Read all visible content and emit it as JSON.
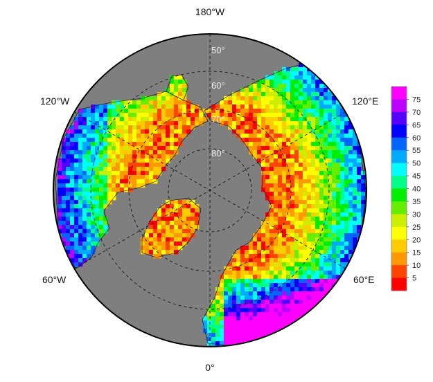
{
  "map": {
    "projection": "north-polar-stereographic",
    "ocean_color": "#7f7f7f",
    "land_outline_color": "#000000",
    "graticule_color": "#111111",
    "longitude_labels": {
      "top": "180°W",
      "upper_left": "120°W",
      "upper_right": "120°E",
      "lower_left": "60°W",
      "lower_right": "60°E",
      "bottom": "0°"
    },
    "latitude_labels": [
      "50°",
      "60°",
      "70°",
      "80°"
    ],
    "latitude_circles": [
      50,
      60,
      70,
      80
    ],
    "field_range": [
      0,
      75
    ]
  },
  "colorbar": {
    "ticks": [
      "75",
      "70",
      "65",
      "60",
      "55",
      "50",
      "45",
      "40",
      "35",
      "30",
      "25",
      "20",
      "15",
      "10",
      "5"
    ],
    "colors": [
      "#ff00ff",
      "#bb00ff",
      "#5500ff",
      "#0000ff",
      "#0066ff",
      "#00aaff",
      "#00ffff",
      "#00ff88",
      "#00ee00",
      "#66ee00",
      "#ccee00",
      "#ffff00",
      "#ffcc00",
      "#ff9900",
      "#ff4400",
      "#ff0000"
    ]
  }
}
